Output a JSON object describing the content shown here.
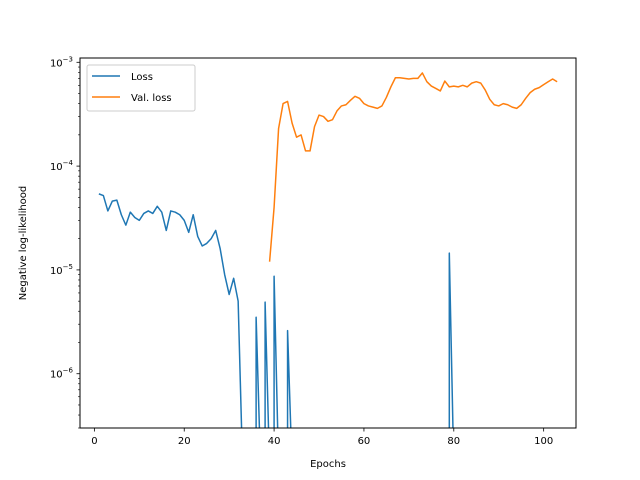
{
  "chart_data": {
    "type": "line",
    "title": "",
    "xlabel": "Epochs",
    "ylabel": "Negative log-likelihood",
    "xlim": [
      -3.2,
      107.2
    ],
    "ylim": [
      3e-07,
      0.0011
    ],
    "yscale": "log",
    "grid": false,
    "legend_position": "top-left",
    "x_ticks": [
      0,
      20,
      40,
      60,
      80,
      100
    ],
    "x_tick_labels": [
      "0",
      "20",
      "40",
      "60",
      "80",
      "100"
    ],
    "y_ticks": [
      1e-06,
      1e-05,
      0.0001,
      0.001
    ],
    "y_tick_labels": [
      {
        "base": "10",
        "exp": "−6"
      },
      {
        "base": "10",
        "exp": "−5"
      },
      {
        "base": "10",
        "exp": "−4"
      },
      {
        "base": "10",
        "exp": "−3"
      }
    ],
    "series": [
      {
        "name": "Loss",
        "color": "#1f77b4",
        "x": [
          1,
          2,
          3,
          4,
          5,
          6,
          7,
          8,
          9,
          10,
          11,
          12,
          13,
          14,
          15,
          16,
          17,
          18,
          19,
          20,
          21,
          22,
          23,
          24,
          25,
          26,
          27,
          28,
          29,
          30,
          31,
          32,
          33,
          34,
          35,
          36,
          37,
          38,
          39,
          40,
          41,
          42,
          43,
          44,
          45,
          46,
          47,
          48,
          49,
          50,
          51,
          52,
          53,
          54,
          55,
          56,
          57,
          58,
          59,
          60,
          61,
          62,
          63,
          64,
          65,
          66,
          67,
          68,
          69,
          70,
          71,
          72,
          73,
          74,
          75,
          76,
          77,
          78,
          79,
          80,
          81,
          82,
          83,
          84,
          85,
          86,
          87,
          88,
          89,
          90,
          91,
          92,
          93,
          94,
          95,
          96,
          97,
          98,
          99,
          100,
          101,
          102,
          103
        ],
        "y": [
          5.4e-05,
          5.2e-05,
          3.7e-05,
          4.6e-05,
          4.7e-05,
          3.4e-05,
          2.7e-05,
          3.6e-05,
          3.2e-05,
          3e-05,
          3.5e-05,
          3.7e-05,
          3.5e-05,
          4.1e-05,
          3.6e-05,
          2.4e-05,
          3.7e-05,
          3.6e-05,
          3.4e-05,
          3e-05,
          2.3e-05,
          3.4e-05,
          2.1e-05,
          1.7e-05,
          1.8e-05,
          2e-05,
          2.4e-05,
          1.6e-05,
          9e-06,
          5.8e-06,
          8.3e-06,
          5e-06,
          null,
          null,
          null,
          3.5e-06,
          null,
          4.9e-06,
          null,
          8.7e-06,
          null,
          null,
          2.6e-06,
          null,
          null,
          null,
          null,
          null,
          null,
          null,
          null,
          null,
          null,
          null,
          null,
          null,
          null,
          null,
          null,
          null,
          null,
          null,
          null,
          null,
          null,
          null,
          null,
          null,
          null,
          null,
          null,
          null,
          null,
          null,
          null,
          null,
          null,
          null,
          1.45e-05,
          null,
          null,
          null,
          null,
          null,
          null,
          null,
          null,
          null,
          null,
          null,
          null,
          null,
          null,
          null,
          null,
          null,
          null,
          null,
          null,
          null,
          null,
          null,
          null
        ]
      },
      {
        "name": "Val. loss",
        "color": "#ff7f0e",
        "x": [
          1,
          2,
          3,
          4,
          5,
          6,
          7,
          8,
          9,
          10,
          11,
          12,
          13,
          14,
          15,
          16,
          17,
          18,
          19,
          20,
          21,
          22,
          23,
          24,
          25,
          26,
          27,
          28,
          29,
          30,
          31,
          32,
          33,
          34,
          35,
          36,
          37,
          38,
          39,
          40,
          41,
          42,
          43,
          44,
          45,
          46,
          47,
          48,
          49,
          50,
          51,
          52,
          53,
          54,
          55,
          56,
          57,
          58,
          59,
          60,
          61,
          62,
          63,
          64,
          65,
          66,
          67,
          68,
          69,
          70,
          71,
          72,
          73,
          74,
          75,
          76,
          77,
          78,
          79,
          80,
          81,
          82,
          83,
          84,
          85,
          86,
          87,
          88,
          89,
          90,
          91,
          92,
          93,
          94,
          95,
          96,
          97,
          98,
          99,
          100,
          101,
          102,
          103
        ],
        "y": [
          null,
          null,
          null,
          null,
          null,
          null,
          null,
          null,
          null,
          null,
          null,
          null,
          null,
          null,
          null,
          null,
          null,
          null,
          null,
          null,
          null,
          null,
          null,
          null,
          null,
          null,
          null,
          null,
          null,
          null,
          null,
          null,
          null,
          null,
          null,
          null,
          null,
          null,
          1.2e-05,
          4e-05,
          0.00023,
          0.0004,
          0.00042,
          0.00026,
          0.00019,
          0.0002,
          0.00014,
          0.00014,
          0.00024,
          0.00031,
          0.0003,
          0.00027,
          0.00028,
          0.00034,
          0.00038,
          0.00039,
          0.00043,
          0.00047,
          0.00045,
          0.0004,
          0.00038,
          0.00037,
          0.00036,
          0.00038,
          0.00046,
          0.00058,
          0.00071,
          0.00071,
          0.0007,
          0.00069,
          0.0007,
          0.0007,
          0.00079,
          0.00065,
          0.00059,
          0.00056,
          0.00053,
          0.00066,
          0.00058,
          0.00059,
          0.00058,
          0.0006,
          0.00058,
          0.00063,
          0.00065,
          0.00063,
          0.00054,
          0.00044,
          0.00039,
          0.00038,
          0.0004,
          0.00039,
          0.00037,
          0.00036,
          0.00039,
          0.00045,
          0.00051,
          0.00055,
          0.00057,
          0.00061,
          0.00065,
          0.00069,
          0.00065
        ]
      }
    ]
  }
}
